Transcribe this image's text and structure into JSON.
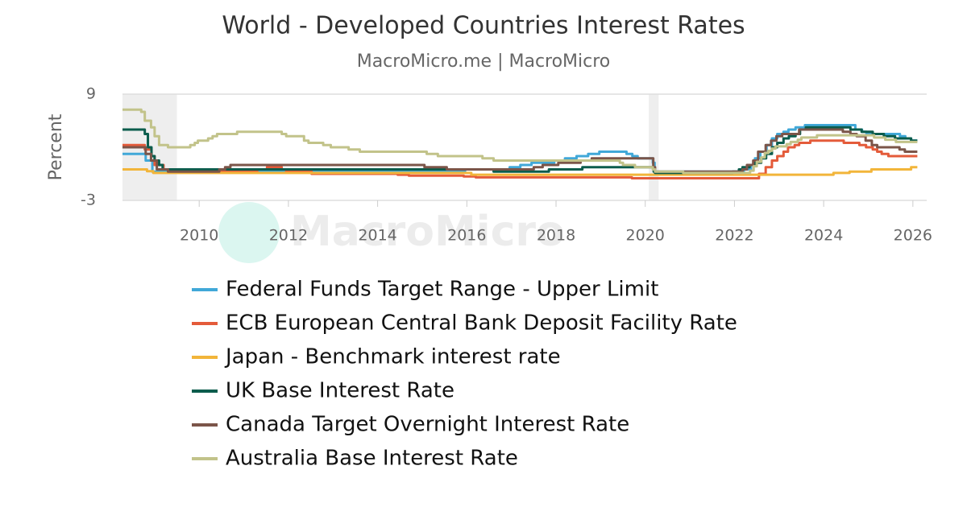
{
  "chart_data": {
    "type": "line",
    "step": true,
    "title": "World - Developed Countries Interest Rates",
    "subtitle": "MacroMicro.me | MacroMicro",
    "watermark": "MacroMicro",
    "y_label": "Percent",
    "xlim": [
      2008.28,
      2026.31
    ],
    "xticks": [
      2010,
      2012,
      2014,
      2016,
      2018,
      2020,
      2022,
      2024,
      2026
    ],
    "ylim": [
      -3,
      9
    ],
    "yticks": [
      -3,
      9
    ],
    "grid": true,
    "shaded_regions": [
      [
        2008.28,
        2009.5
      ],
      [
        2020.08,
        2020.3
      ]
    ],
    "series": [
      {
        "name": "Federal Funds Target Range - Upper Limit",
        "color": "#41a8d8",
        "x": [
          2008.28,
          2008.8,
          2008.95,
          2015.96,
          2016.96,
          2017.2,
          2017.45,
          2017.96,
          2018.2,
          2018.46,
          2018.72,
          2018.97,
          2019.58,
          2019.71,
          2019.83,
          2020.17,
          2020.21,
          2022.21,
          2022.37,
          2022.46,
          2022.58,
          2022.72,
          2022.84,
          2022.96,
          2023.1,
          2023.21,
          2023.37,
          2023.58,
          2024.71,
          2024.86,
          2024.96,
          2025.71,
          2025.83,
          2025.96,
          2026.1
        ],
        "values": [
          2.25,
          1.5,
          0.25,
          0.5,
          0.75,
          1.0,
          1.25,
          1.5,
          1.75,
          2.0,
          2.25,
          2.5,
          2.25,
          2.0,
          1.75,
          1.25,
          0.25,
          0.5,
          1.0,
          1.75,
          2.5,
          3.25,
          4.0,
          4.5,
          4.75,
          5.0,
          5.25,
          5.5,
          5.0,
          4.75,
          4.5,
          4.25,
          4.0,
          3.75,
          3.75
        ]
      },
      {
        "name": "ECB European Central Bank Deposit Facility Rate",
        "color": "#e45b3a",
        "x": [
          2008.28,
          2008.78,
          2008.93,
          2009.0,
          2009.2,
          2009.35,
          2011.3,
          2011.52,
          2011.85,
          2011.95,
          2012.52,
          2014.45,
          2014.7,
          2015.93,
          2016.2,
          2019.7,
          2022.55,
          2022.7,
          2022.84,
          2022.96,
          2023.1,
          2023.2,
          2023.35,
          2023.45,
          2023.7,
          2024.45,
          2024.8,
          2024.95,
          2025.1,
          2025.2,
          2025.3,
          2025.45,
          2026.1
        ],
        "values": [
          3.25,
          2.75,
          2.0,
          1.0,
          0.5,
          0.25,
          0.5,
          0.75,
          0.5,
          0.25,
          0.0,
          -0.1,
          -0.2,
          -0.3,
          -0.4,
          -0.5,
          0.0,
          0.75,
          1.5,
          2.0,
          2.5,
          3.0,
          3.25,
          3.5,
          3.75,
          3.5,
          3.25,
          3.0,
          2.75,
          2.5,
          2.25,
          2.0,
          2.0
        ]
      },
      {
        "name": "Japan - Benchmark interest rate",
        "color": "#f2b53a",
        "x": [
          2008.28,
          2008.83,
          2008.97,
          2016.1,
          2024.22,
          2024.58,
          2025.07,
          2025.96,
          2026.1
        ],
        "values": [
          0.5,
          0.3,
          0.1,
          -0.1,
          0.1,
          0.25,
          0.5,
          0.75,
          0.75
        ]
      },
      {
        "name": "UK Base Interest Rate",
        "color": "#0b5c4c",
        "x": [
          2008.28,
          2008.78,
          2008.85,
          2008.93,
          2009.0,
          2009.1,
          2009.18,
          2016.6,
          2017.84,
          2018.59,
          2020.19,
          2020.22,
          2021.96,
          2022.1,
          2022.18,
          2022.34,
          2022.46,
          2022.6,
          2022.71,
          2022.84,
          2022.96,
          2023.1,
          2023.22,
          2023.37,
          2023.47,
          2023.6,
          2024.6,
          2024.85,
          2025.1,
          2025.35,
          2025.6,
          2025.96,
          2026.1
        ],
        "values": [
          5.0,
          4.5,
          3.0,
          2.0,
          1.5,
          1.0,
          0.5,
          0.25,
          0.5,
          0.75,
          0.25,
          0.1,
          0.25,
          0.5,
          0.75,
          1.0,
          1.25,
          1.75,
          2.25,
          3.0,
          3.5,
          4.0,
          4.25,
          4.5,
          5.0,
          5.25,
          5.0,
          4.75,
          4.5,
          4.25,
          4.0,
          3.75,
          3.75
        ]
      },
      {
        "name": "Canada Target Overnight Interest Rate",
        "color": "#7b5549",
        "x": [
          2008.28,
          2008.8,
          2008.92,
          2009.05,
          2009.3,
          2010.45,
          2010.58,
          2010.7,
          2015.05,
          2015.55,
          2017.5,
          2017.7,
          2018.05,
          2018.55,
          2018.8,
          2020.18,
          2020.22,
          2022.18,
          2022.28,
          2022.42,
          2022.53,
          2022.7,
          2022.82,
          2022.94,
          2023.07,
          2023.45,
          2024.43,
          2024.6,
          2024.74,
          2024.94,
          2025.08,
          2025.2,
          2025.7,
          2025.82,
          2026.1
        ],
        "values": [
          3.0,
          2.25,
          1.5,
          0.5,
          0.25,
          0.5,
          0.75,
          1.0,
          0.75,
          0.5,
          0.75,
          1.0,
          1.25,
          1.5,
          1.75,
          0.75,
          0.25,
          0.5,
          1.0,
          1.5,
          2.5,
          3.25,
          3.75,
          4.25,
          4.5,
          5.0,
          4.75,
          4.5,
          4.25,
          3.75,
          3.25,
          3.0,
          2.75,
          2.5,
          2.5
        ]
      },
      {
        "name": "Australia Base Interest Rate",
        "color": "#c2c38a",
        "x": [
          2008.28,
          2008.7,
          2008.78,
          2008.92,
          2009.0,
          2009.1,
          2009.3,
          2009.8,
          2009.9,
          2009.97,
          2010.2,
          2010.3,
          2010.4,
          2010.85,
          2011.85,
          2011.95,
          2012.35,
          2012.45,
          2012.78,
          2012.95,
          2013.35,
          2013.6,
          2015.1,
          2015.35,
          2016.35,
          2016.6,
          2019.43,
          2019.5,
          2019.77,
          2020.17,
          2020.22,
          2020.85,
          2022.35,
          2022.43,
          2022.5,
          2022.6,
          2022.68,
          2022.76,
          2022.84,
          2022.92,
          2023.17,
          2023.26,
          2023.42,
          2023.5,
          2023.85,
          2025.13,
          2025.38,
          2025.62,
          2026.1
        ],
        "values": [
          7.25,
          7.0,
          6.0,
          5.25,
          4.25,
          3.25,
          3.0,
          3.25,
          3.5,
          3.75,
          4.0,
          4.25,
          4.5,
          4.75,
          4.5,
          4.25,
          3.75,
          3.5,
          3.25,
          3.0,
          2.75,
          2.5,
          2.25,
          2.0,
          1.75,
          1.5,
          1.25,
          1.0,
          0.75,
          0.5,
          0.25,
          0.1,
          0.35,
          0.85,
          1.35,
          1.85,
          2.35,
          2.6,
          2.85,
          3.1,
          3.35,
          3.6,
          3.85,
          4.1,
          4.35,
          4.1,
          3.85,
          3.6,
          3.6
        ]
      }
    ]
  }
}
